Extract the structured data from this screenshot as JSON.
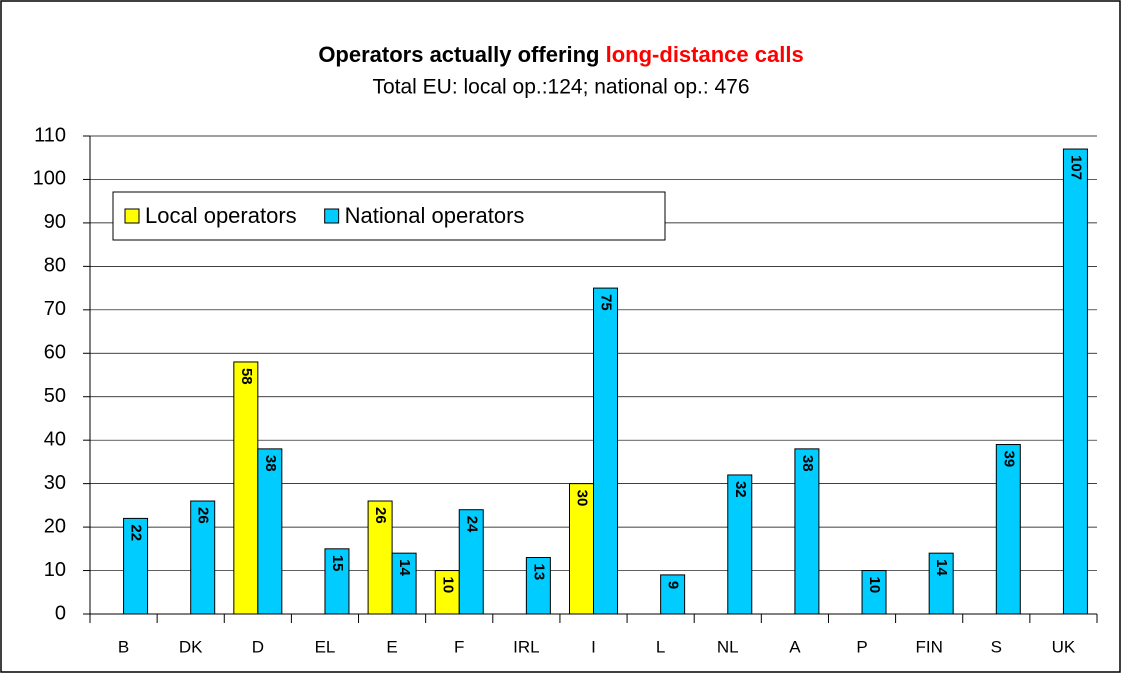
{
  "chart_data": {
    "type": "bar",
    "title": "Operators actually offering",
    "title_highlight": "long-distance calls",
    "subtitle": "Total EU: local op.:124; national op.: 476",
    "categories": [
      "B",
      "DK",
      "D",
      "EL",
      "E",
      "F",
      "IRL",
      "I",
      "L",
      "NL",
      "A",
      "P",
      "FIN",
      "S",
      "UK"
    ],
    "series": [
      {
        "name": "Local operators",
        "color": "#ffff00",
        "values": [
          null,
          null,
          58,
          null,
          26,
          10,
          null,
          30,
          null,
          null,
          null,
          null,
          null,
          null,
          null
        ]
      },
      {
        "name": "National operators",
        "color": "#00ccff",
        "values": [
          22,
          26,
          38,
          15,
          14,
          24,
          13,
          75,
          9,
          32,
          38,
          10,
          14,
          39,
          107
        ]
      }
    ],
    "ylim": [
      0,
      110
    ],
    "yticks": [
      0,
      10,
      20,
      30,
      40,
      50,
      60,
      70,
      80,
      90,
      100,
      110
    ],
    "grid": true,
    "legend": "upper left"
  }
}
